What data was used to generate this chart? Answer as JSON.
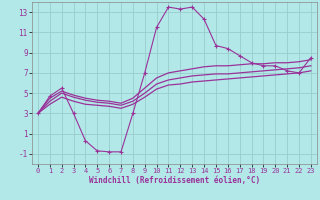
{
  "title": "",
  "xlabel": "Windchill (Refroidissement éolien,°C)",
  "bg_color": "#b3e8e8",
  "grid_color": "#99cccc",
  "line_color": "#993399",
  "x_hours": [
    0,
    1,
    2,
    3,
    4,
    5,
    6,
    7,
    8,
    9,
    10,
    11,
    12,
    13,
    14,
    15,
    16,
    17,
    18,
    19,
    20,
    21,
    22,
    23
  ],
  "line1": [
    3.0,
    4.7,
    5.5,
    3.0,
    0.3,
    -0.7,
    -0.8,
    -0.8,
    3.0,
    7.0,
    11.5,
    13.5,
    13.3,
    13.5,
    12.3,
    9.7,
    9.4,
    8.7,
    8.0,
    7.7,
    7.7,
    7.2,
    7.0,
    8.5
  ],
  "line2": [
    3.0,
    4.5,
    5.2,
    4.8,
    4.5,
    4.3,
    4.2,
    4.0,
    4.5,
    5.5,
    6.5,
    7.0,
    7.2,
    7.4,
    7.6,
    7.7,
    7.7,
    7.8,
    7.9,
    7.9,
    8.0,
    8.0,
    8.1,
    8.3
  ],
  "line3": [
    3.0,
    4.2,
    5.0,
    4.6,
    4.3,
    4.1,
    4.0,
    3.8,
    4.2,
    5.0,
    5.9,
    6.3,
    6.5,
    6.7,
    6.8,
    6.9,
    6.9,
    7.0,
    7.1,
    7.2,
    7.3,
    7.4,
    7.5,
    7.7
  ],
  "line4": [
    3.0,
    3.9,
    4.6,
    4.2,
    3.9,
    3.8,
    3.7,
    3.5,
    3.9,
    4.6,
    5.4,
    5.8,
    5.9,
    6.1,
    6.2,
    6.3,
    6.4,
    6.5,
    6.6,
    6.7,
    6.8,
    6.9,
    7.0,
    7.2
  ],
  "ylim": [
    -2,
    14
  ],
  "yticks": [
    -1,
    1,
    3,
    5,
    7,
    9,
    11,
    13
  ],
  "xticks": [
    0,
    1,
    2,
    3,
    4,
    5,
    6,
    7,
    8,
    9,
    10,
    11,
    12,
    13,
    14,
    15,
    16,
    17,
    18,
    19,
    20,
    21,
    22,
    23
  ]
}
